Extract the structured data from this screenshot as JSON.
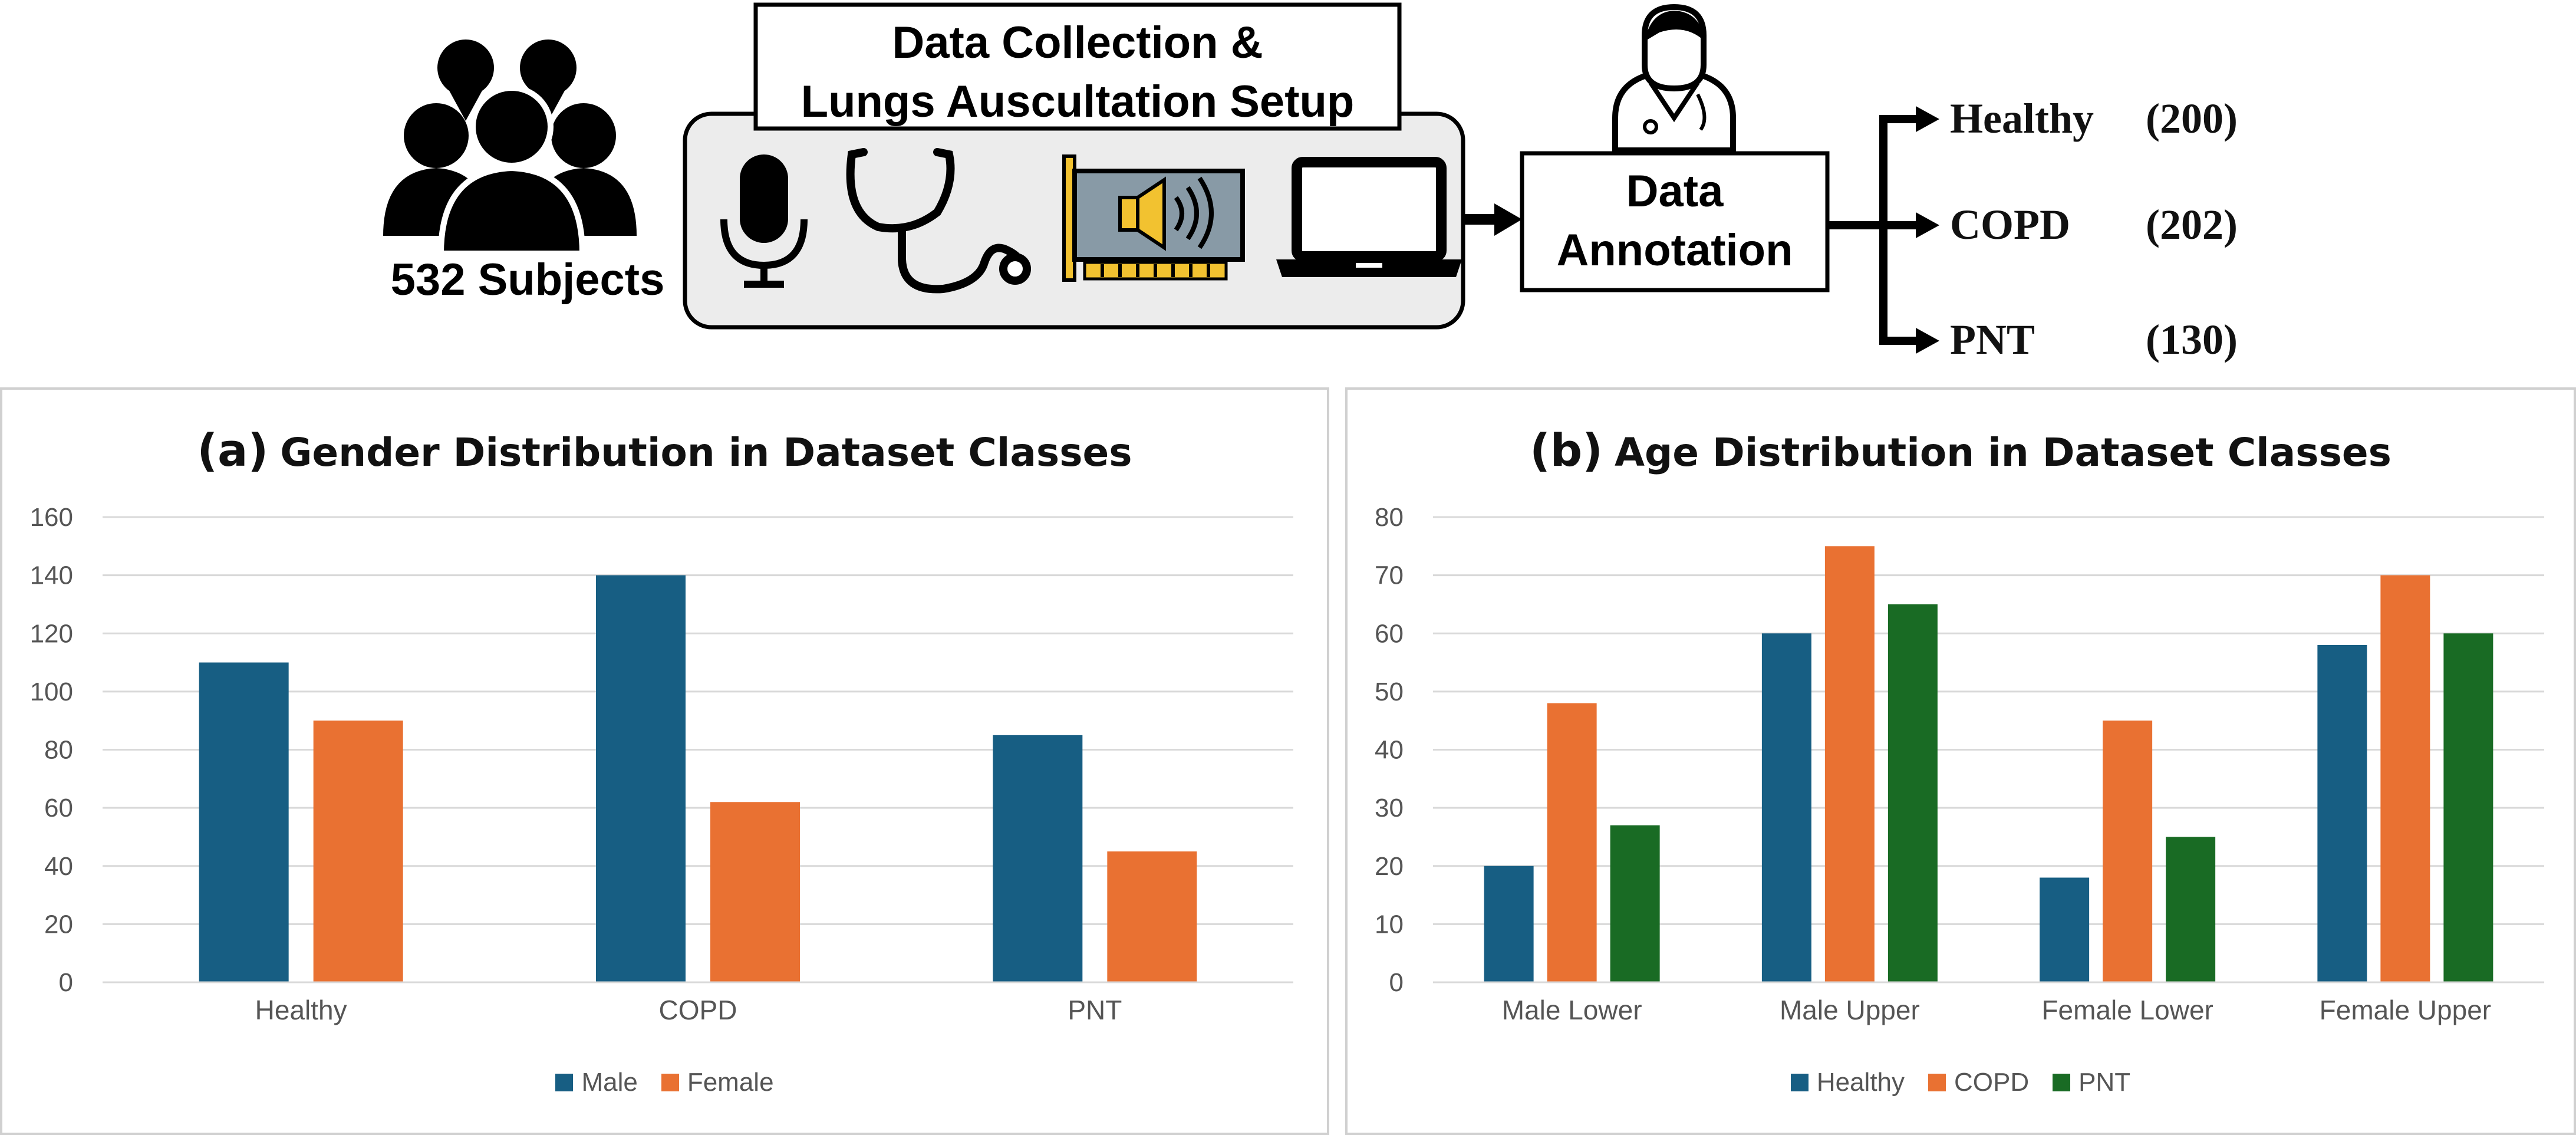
{
  "subjects": {
    "label": "532 Subjects"
  },
  "collection": {
    "title_line1": "Data Collection &",
    "title_line2": "Lungs Auscultation Setup"
  },
  "annotation": {
    "line1": "Data",
    "line2": "Annotation"
  },
  "classes": [
    {
      "name": "Healthy",
      "count": "(200)"
    },
    {
      "name": "COPD",
      "count": "(202)"
    },
    {
      "name": "PNT",
      "count": "(130)"
    }
  ],
  "colors": {
    "healthy_male": "#175E83",
    "female_copd": "#E97132",
    "pnt": "#196B24"
  },
  "chart_data": [
    {
      "type": "bar",
      "tag": "(a)",
      "title": "Gender Distribution in Dataset Classes",
      "categories": [
        "Healthy",
        "COPD",
        "PNT"
      ],
      "series": [
        {
          "name": "Male",
          "color": "#175E83",
          "values": [
            110,
            140,
            85
          ]
        },
        {
          "name": "Female",
          "color": "#E97132",
          "values": [
            90,
            62,
            45
          ]
        }
      ],
      "ylim": [
        0,
        160
      ],
      "yticks": [
        "0",
        "20",
        "40",
        "60",
        "80",
        "100",
        "120",
        "140",
        "160"
      ],
      "grid": true,
      "legend": "bottom"
    },
    {
      "type": "bar",
      "tag": "(b)",
      "title": "Age Distribution in Dataset Classes",
      "categories": [
        "Male Lower",
        "Male Upper",
        "Female Lower",
        "Female Upper"
      ],
      "series": [
        {
          "name": "Healthy",
          "color": "#175E83",
          "values": [
            20,
            60,
            18,
            58
          ]
        },
        {
          "name": "COPD",
          "color": "#E97132",
          "values": [
            48,
            75,
            45,
            70
          ]
        },
        {
          "name": "PNT",
          "color": "#196B24",
          "values": [
            27,
            65,
            25,
            60
          ]
        }
      ],
      "ylim": [
        0,
        80
      ],
      "yticks": [
        "0",
        "10",
        "20",
        "30",
        "40",
        "50",
        "60",
        "70",
        "80"
      ],
      "grid": true,
      "legend": "bottom"
    }
  ]
}
